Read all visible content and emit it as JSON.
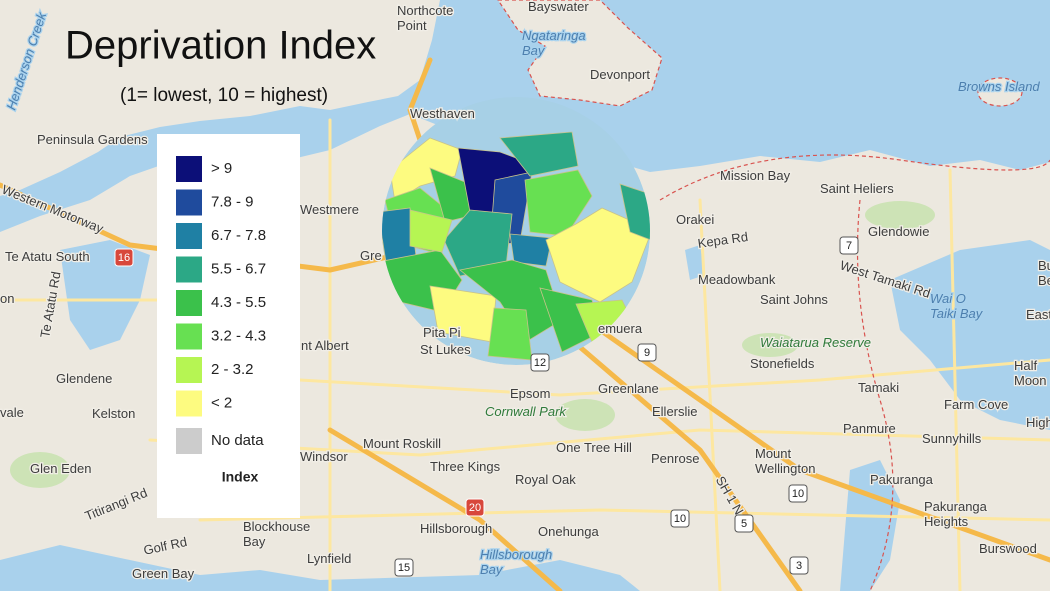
{
  "title": "Deprivation Index",
  "subtitle": "(1= lowest, 10 = highest)",
  "legend": {
    "title": "Index",
    "items": [
      {
        "label": "> 9",
        "color": "#0c0f78"
      },
      {
        "label": "7.8 - 9",
        "color": "#1f4b9d"
      },
      {
        "label": "6.7 - 7.8",
        "color": "#1f80a4"
      },
      {
        "label": "5.5 - 6.7",
        "color": "#2ca886"
      },
      {
        "label": "4.3 - 5.5",
        "color": "#3bc14b"
      },
      {
        "label": "3.2 - 4.3",
        "color": "#67e052"
      },
      {
        "label": "2 - 3.2",
        "color": "#b6f553"
      },
      {
        "label": "< 2",
        "color": "#fdfb80"
      },
      {
        "label": "No data",
        "color": "#cccccc"
      }
    ]
  },
  "places": [
    {
      "lines": [
        "Northcote",
        "Point"
      ]
    },
    {
      "lines": [
        "Bayswater"
      ]
    },
    {
      "lines": [
        "Ngataringa",
        "Bay"
      ]
    },
    {
      "lines": [
        "Devonport"
      ]
    },
    {
      "lines": [
        "Browns Island"
      ]
    },
    {
      "lines": [
        "Henderson Creek"
      ]
    },
    {
      "lines": [
        "Peninsula Gardens"
      ]
    },
    {
      "lines": [
        "Westhaven"
      ]
    },
    {
      "lines": [
        "Western Motorway"
      ]
    },
    {
      "lines": [
        "Westmere"
      ]
    },
    {
      "lines": [
        "Gre"
      ]
    },
    {
      "lines": [
        "Te Atatu South"
      ]
    },
    {
      "lines": [
        "Te Atatu Rd"
      ]
    },
    {
      "lines": [
        "on"
      ]
    },
    {
      "lines": [
        "Pita Pi"
      ]
    },
    {
      "lines": [
        "St Lukes"
      ]
    },
    {
      "lines": [
        "nt Albert"
      ]
    },
    {
      "lines": [
        "Glendene"
      ]
    },
    {
      "lines": [
        "Kelston"
      ]
    },
    {
      "lines": [
        "vale"
      ]
    },
    {
      "lines": [
        "Glen Eden"
      ]
    },
    {
      "lines": [
        "Titirangi Rd"
      ]
    },
    {
      "lines": [
        "Mount Roskill"
      ]
    },
    {
      "lines": [
        "Windsor"
      ]
    },
    {
      "lines": [
        "Three Kings"
      ]
    },
    {
      "lines": [
        "Royal Oak"
      ]
    },
    {
      "lines": [
        "Blockhouse",
        "Bay"
      ]
    },
    {
      "lines": [
        "Hillsborough"
      ]
    },
    {
      "lines": [
        "Hillsborough",
        "Bay"
      ]
    },
    {
      "lines": [
        "Onehunga"
      ]
    },
    {
      "lines": [
        "Lynfield"
      ]
    },
    {
      "lines": [
        "Golf Rd"
      ]
    },
    {
      "lines": [
        "Green Bay"
      ]
    },
    {
      "lines": [
        "Mission Bay"
      ]
    },
    {
      "lines": [
        "Saint Heliers"
      ]
    },
    {
      "lines": [
        "Orakei"
      ]
    },
    {
      "lines": [
        "Kepa Rd"
      ]
    },
    {
      "lines": [
        "Glendowie"
      ]
    },
    {
      "lines": [
        "Meadowbank"
      ]
    },
    {
      "lines": [
        "West Tamaki Rd"
      ]
    },
    {
      "lines": [
        "Saint Johns"
      ]
    },
    {
      "lines": [
        "Waiatarua Reserve"
      ]
    },
    {
      "lines": [
        "Stonefields"
      ]
    },
    {
      "lines": [
        "emuera"
      ]
    },
    {
      "lines": [
        "Epsom"
      ]
    },
    {
      "lines": [
        "Greenlane"
      ]
    },
    {
      "lines": [
        "Cornwall Park"
      ]
    },
    {
      "lines": [
        "Ellerslie"
      ]
    },
    {
      "lines": [
        "One Tree Hill"
      ]
    },
    {
      "lines": [
        "Penrose"
      ]
    },
    {
      "lines": [
        "Mount",
        "Wellington"
      ]
    },
    {
      "lines": [
        "Tamaki"
      ]
    },
    {
      "lines": [
        "Wai O",
        "Taiki Bay"
      ]
    },
    {
      "lines": [
        "Half",
        "Moon Bay"
      ]
    },
    {
      "lines": [
        "Farm Cove"
      ]
    },
    {
      "lines": [
        "Highland"
      ]
    },
    {
      "lines": [
        "Sunnyhills"
      ]
    },
    {
      "lines": [
        "Panmure"
      ]
    },
    {
      "lines": [
        "Pakuranga"
      ]
    },
    {
      "lines": [
        "Pakuranga",
        "Heights"
      ]
    },
    {
      "lines": [
        "Burswood"
      ]
    },
    {
      "lines": [
        "Buckla",
        "Beac"
      ]
    },
    {
      "lines": [
        "East"
      ]
    },
    {
      "lines": [
        "SH 1 N"
      ]
    }
  ],
  "roads": [
    "16",
    "20",
    "7",
    "9",
    "12",
    "10",
    "10",
    "5",
    "15",
    "3"
  ]
}
